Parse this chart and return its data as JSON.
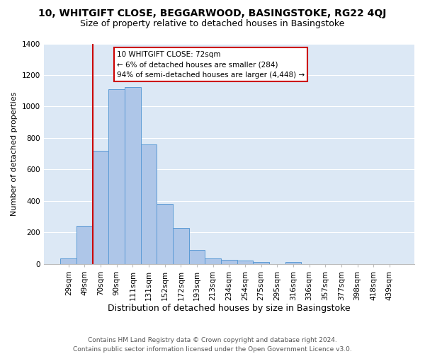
{
  "title": "10, WHITGIFT CLOSE, BEGGARWOOD, BASINGSTOKE, RG22 4QJ",
  "subtitle": "Size of property relative to detached houses in Basingstoke",
  "xlabel": "Distribution of detached houses by size in Basingstoke",
  "ylabel": "Number of detached properties",
  "bar_labels": [
    "29sqm",
    "49sqm",
    "70sqm",
    "90sqm",
    "111sqm",
    "131sqm",
    "152sqm",
    "172sqm",
    "193sqm",
    "213sqm",
    "234sqm",
    "254sqm",
    "275sqm",
    "295sqm",
    "316sqm",
    "336sqm",
    "357sqm",
    "377sqm",
    "398sqm",
    "418sqm",
    "439sqm"
  ],
  "bar_values": [
    35,
    240,
    720,
    1110,
    1125,
    760,
    380,
    228,
    90,
    35,
    25,
    20,
    12,
    0,
    12,
    0,
    0,
    0,
    0,
    0,
    0
  ],
  "bar_color": "#aec6e8",
  "bar_edge_color": "#5b9bd5",
  "vline_index": 2,
  "vline_color": "#cc0000",
  "ylim": [
    0,
    1400
  ],
  "yticks": [
    0,
    200,
    400,
    600,
    800,
    1000,
    1200,
    1400
  ],
  "annotation_title": "10 WHITGIFT CLOSE: 72sqm",
  "annotation_line1": "← 6% of detached houses are smaller (284)",
  "annotation_line2": "94% of semi-detached houses are larger (4,448) →",
  "annotation_box_facecolor": "#ffffff",
  "annotation_box_edgecolor": "#cc0000",
  "fig_facecolor": "#ffffff",
  "plot_bg_color": "#dce8f5",
  "grid_color": "#ffffff",
  "footer1": "Contains HM Land Registry data © Crown copyright and database right 2024.",
  "footer2": "Contains public sector information licensed under the Open Government Licence v3.0.",
  "title_fontsize": 10,
  "subtitle_fontsize": 9,
  "ylabel_fontsize": 8,
  "xlabel_fontsize": 9,
  "tick_fontsize": 7.5,
  "footer_fontsize": 6.5
}
